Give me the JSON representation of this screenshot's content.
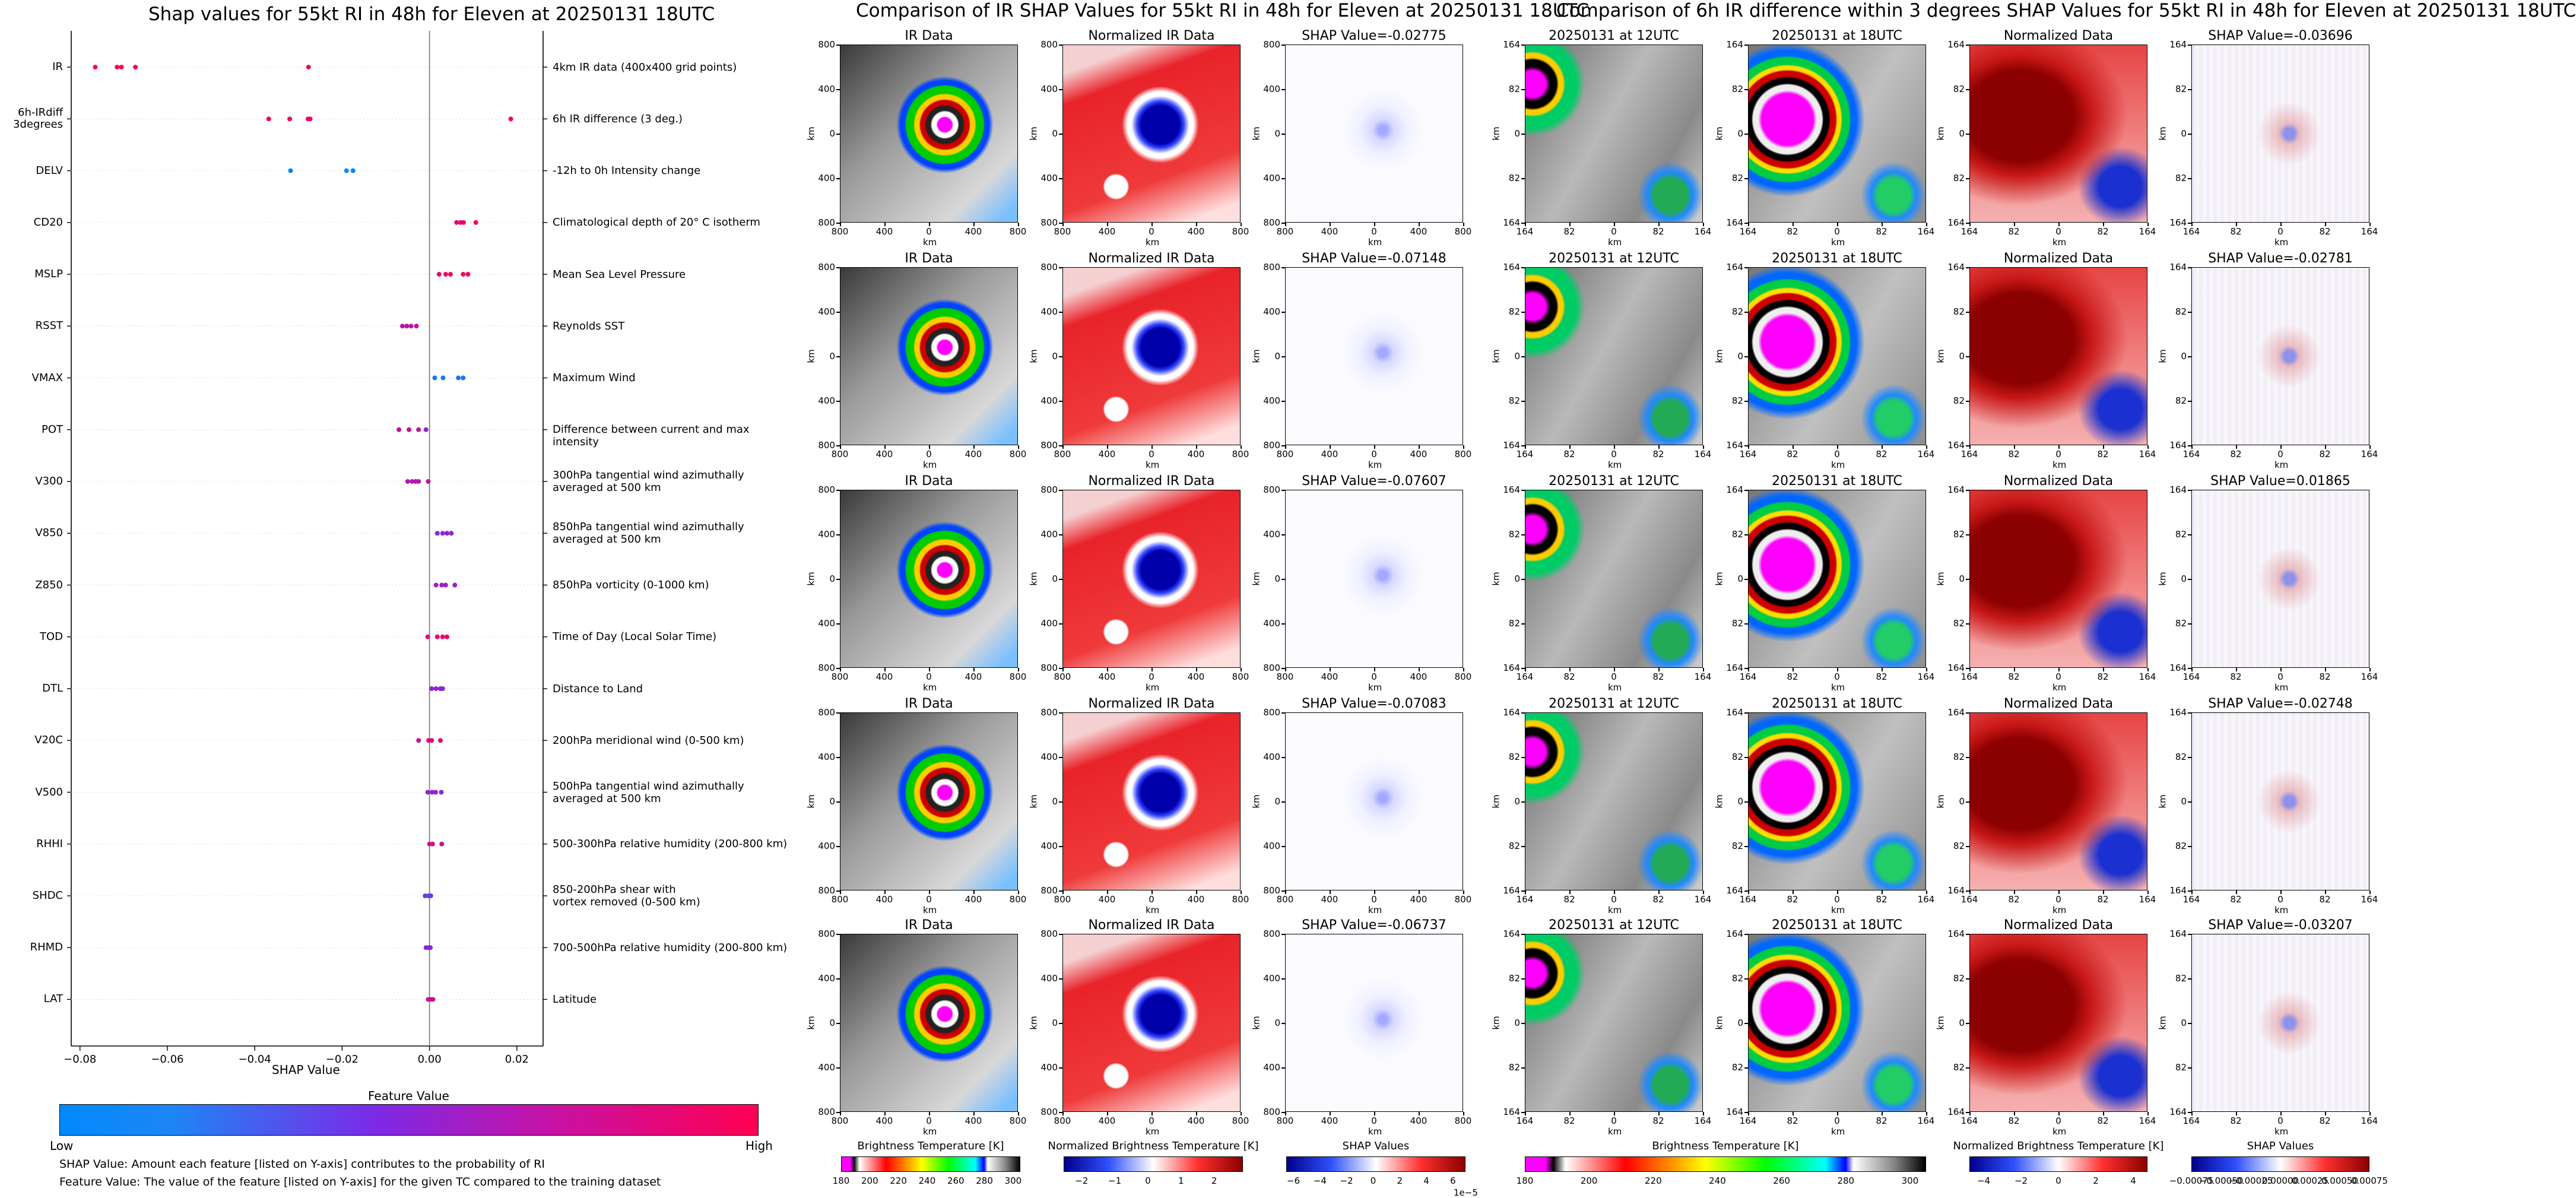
{
  "chart_data": [
    {
      "type": "scatter",
      "title": "Shap values for 55kt RI in 48h for Eleven at 20250131 18UTC",
      "xlabel": "SHAP Value",
      "xlim": [
        -0.082,
        0.026
      ],
      "xticks": [
        -0.08,
        -0.06,
        -0.04,
        -0.02,
        0.0,
        0.02
      ],
      "xtick_labels": [
        "−0.08",
        "−0.06",
        "−0.04",
        "−0.02",
        "0.00",
        "0.02"
      ],
      "zero_line": true,
      "features": [
        {
          "name": "IR",
          "desc": "4km IR data (400x400 grid points)",
          "points": [
            {
              "x": -0.0765,
              "v": 1.0
            },
            {
              "x": -0.0715,
              "v": 0.95
            },
            {
              "x": -0.0705,
              "v": 1.0
            },
            {
              "x": -0.0673,
              "v": 0.98
            },
            {
              "x": -0.0277,
              "v": 0.92
            }
          ]
        },
        {
          "name": "6h-IRdiff\n3degrees",
          "desc": "6h IR difference (3 deg.)",
          "points": [
            {
              "x": -0.0368,
              "v": 0.95
            },
            {
              "x": -0.032,
              "v": 0.97
            },
            {
              "x": -0.0278,
              "v": 0.9
            },
            {
              "x": -0.0273,
              "v": 0.93
            },
            {
              "x": 0.0186,
              "v": 1.0
            }
          ]
        },
        {
          "name": "DELV",
          "desc": "-12h to 0h Intensity change",
          "points": [
            {
              "x": -0.0318,
              "v": 0.05
            },
            {
              "x": -0.019,
              "v": 0.0
            },
            {
              "x": -0.0175,
              "v": 0.05
            }
          ]
        },
        {
          "name": "CD20",
          "desc": "Climatological depth of 20° C isotherm",
          "points": [
            {
              "x": 0.0062,
              "v": 0.9
            },
            {
              "x": 0.0071,
              "v": 0.95
            },
            {
              "x": 0.0078,
              "v": 0.9
            },
            {
              "x": 0.0106,
              "v": 1.0
            }
          ]
        },
        {
          "name": "MSLP",
          "desc": "Mean Sea Level Pressure",
          "points": [
            {
              "x": 0.0022,
              "v": 0.9
            },
            {
              "x": 0.0037,
              "v": 0.92
            },
            {
              "x": 0.0048,
              "v": 0.95
            },
            {
              "x": 0.0077,
              "v": 0.95
            },
            {
              "x": 0.0088,
              "v": 0.92
            }
          ]
        },
        {
          "name": "RSST",
          "desc": "Reynolds SST",
          "points": [
            {
              "x": -0.0062,
              "v": 0.7
            },
            {
              "x": -0.0052,
              "v": 0.72
            },
            {
              "x": -0.0042,
              "v": 0.75
            },
            {
              "x": -0.003,
              "v": 0.73
            }
          ]
        },
        {
          "name": "VMAX",
          "desc": "Maximum Wind",
          "points": [
            {
              "x": 0.0012,
              "v": 0.1
            },
            {
              "x": 0.0031,
              "v": 0.1
            },
            {
              "x": 0.0066,
              "v": 0.12
            },
            {
              "x": 0.0077,
              "v": 0.1
            }
          ]
        },
        {
          "name": "POT",
          "desc": "Difference between current and max intensity",
          "points": [
            {
              "x": -0.007,
              "v": 0.78
            },
            {
              "x": -0.0047,
              "v": 0.8
            },
            {
              "x": -0.0025,
              "v": 0.75
            },
            {
              "x": -0.0008,
              "v": 0.6
            }
          ]
        },
        {
          "name": "V300",
          "desc": "300hPa tangential wind azimuthally\naveraged at 500 km",
          "points": [
            {
              "x": -0.005,
              "v": 0.7
            },
            {
              "x": -0.004,
              "v": 0.72
            },
            {
              "x": -0.0032,
              "v": 0.7
            },
            {
              "x": -0.0025,
              "v": 0.7
            },
            {
              "x": -0.0003,
              "v": 0.75
            }
          ]
        },
        {
          "name": "V850",
          "desc": "850hPa tangential wind azimuthally\naveraged at 500 km",
          "points": [
            {
              "x": 0.0018,
              "v": 0.55
            },
            {
              "x": 0.003,
              "v": 0.55
            },
            {
              "x": 0.004,
              "v": 0.6
            },
            {
              "x": 0.005,
              "v": 0.55
            }
          ]
        },
        {
          "name": "Z850",
          "desc": "850hPa vorticity (0-1000 km)",
          "points": [
            {
              "x": 0.0015,
              "v": 0.65
            },
            {
              "x": 0.0028,
              "v": 0.65
            },
            {
              "x": 0.0037,
              "v": 0.62
            },
            {
              "x": 0.0058,
              "v": 0.6
            }
          ]
        },
        {
          "name": "TOD",
          "desc": "Time of Day (Local Solar Time)",
          "points": [
            {
              "x": -0.0004,
              "v": 0.85
            },
            {
              "x": 0.0018,
              "v": 0.9
            },
            {
              "x": 0.003,
              "v": 0.92
            },
            {
              "x": 0.004,
              "v": 0.9
            }
          ]
        },
        {
          "name": "DTL",
          "desc": "Distance to Land",
          "points": [
            {
              "x": 0.0005,
              "v": 0.55
            },
            {
              "x": 0.0015,
              "v": 0.55
            },
            {
              "x": 0.0025,
              "v": 0.58
            },
            {
              "x": 0.003,
              "v": 0.55
            }
          ]
        },
        {
          "name": "V20C",
          "desc": "200hPa meridional wind (0-500 km)",
          "points": [
            {
              "x": -0.0025,
              "v": 0.75
            },
            {
              "x": -0.0002,
              "v": 0.9
            },
            {
              "x": 0.0005,
              "v": 0.85
            },
            {
              "x": 0.0025,
              "v": 0.85
            }
          ]
        },
        {
          "name": "V500",
          "desc": "500hPa tangential wind azimuthally\naveraged at 500 km",
          "points": [
            {
              "x": -0.0004,
              "v": 0.6
            },
            {
              "x": 0.0006,
              "v": 0.55
            },
            {
              "x": 0.0014,
              "v": 0.6
            },
            {
              "x": 0.0027,
              "v": 0.55
            }
          ]
        },
        {
          "name": "RHHI",
          "desc": "500-300hPa relative humidity (200-800 km)",
          "points": [
            {
              "x": 0.0,
              "v": 0.8
            },
            {
              "x": 0.0007,
              "v": 0.85
            },
            {
              "x": 0.0028,
              "v": 0.8
            }
          ]
        },
        {
          "name": "SHDC",
          "desc": "850-200hPa shear with\nvortex removed (0-500 km)",
          "points": [
            {
              "x": -0.001,
              "v": 0.4
            },
            {
              "x": -0.0002,
              "v": 0.45
            },
            {
              "x": 0.0003,
              "v": 0.4
            }
          ]
        },
        {
          "name": "RHMD",
          "desc": "700-500hPa relative humidity (200-800 km)",
          "points": [
            {
              "x": -0.0008,
              "v": 0.55
            },
            {
              "x": -0.0003,
              "v": 0.58
            },
            {
              "x": 0.0002,
              "v": 0.55
            }
          ]
        },
        {
          "name": "LAT",
          "desc": "Latitude",
          "points": [
            {
              "x": -0.0003,
              "v": 0.75
            },
            {
              "x": 0.0003,
              "v": 0.8
            },
            {
              "x": 0.0008,
              "v": 0.78
            }
          ]
        }
      ],
      "colorbar": {
        "title": "Feature Value",
        "low": "Low",
        "high": "High",
        "low_color": "#008afb",
        "mid_color": "#7c2ae6",
        "high_color": "#ff0052"
      },
      "notes": [
        "SHAP Value: Amount each feature [listed on Y-axis] contributes to the probability of RI",
        "Feature Value: The value of the feature [listed on Y-axis] for the given TC compared to the training dataset"
      ]
    },
    {
      "type": "heatmap",
      "title": "Comparison of IR SHAP Values for 55kt RI in 48h for Eleven at 20250131 18UTC",
      "column_titles": [
        "IR Data",
        "Normalized IR Data"
      ],
      "shap_titles": [
        "SHAP Value=-0.02775",
        "SHAP Value=-0.07148",
        "SHAP Value=-0.07607",
        "SHAP Value=-0.07083",
        "SHAP Value=-0.06737"
      ],
      "axis_label": "km",
      "yticks": [
        "800",
        "400",
        "0",
        "400",
        "800"
      ],
      "xticks": [
        "800",
        "400",
        "0",
        "400",
        "800"
      ],
      "colorbars": [
        {
          "title": "Brightness Temperature [K]",
          "ticks": [
            "180",
            "200",
            "220",
            "240",
            "260",
            "280",
            "300"
          ]
        },
        {
          "title": "Normalized Brightness Temperature [K]",
          "ticks": [
            "−2",
            "−1",
            "0",
            "1",
            "2"
          ]
        },
        {
          "title": "SHAP Values",
          "ticks": [
            "−6",
            "−4",
            "−2",
            "0",
            "2",
            "4",
            "6"
          ],
          "offset": "1e−5"
        }
      ]
    },
    {
      "type": "heatmap",
      "title": "Comparison of 6h IR difference within 3 degrees SHAP Values for 55kt RI in 48h for Eleven at 20250131 18UTC",
      "column_titles": [
        "20250131 at 12UTC",
        "20250131 at 18UTC",
        "Normalized Data"
      ],
      "shap_titles": [
        "SHAP Value=-0.03696",
        "SHAP Value=-0.02781",
        "SHAP Value=0.01865",
        "SHAP Value=-0.02748",
        "SHAP Value=-0.03207"
      ],
      "axis_label": "km",
      "yticks": [
        "164",
        "82",
        "0",
        "82",
        "164"
      ],
      "xticks": [
        "164",
        "82",
        "0",
        "82",
        "164"
      ],
      "colorbars": [
        {
          "title": "Brightness Temperature [K]",
          "ticks": [
            "180",
            "200",
            "220",
            "240",
            "260",
            "280",
            "300"
          ]
        },
        {
          "title": "Normalized Brightness Temperature [K]",
          "ticks": [
            "−4",
            "−2",
            "0",
            "2",
            "4"
          ]
        },
        {
          "title": "SHAP Values",
          "ticks": [
            "−0.00075",
            "−0.00050",
            "−0.00025",
            "0.00000",
            "0.00025",
            "0.00050",
            "0.00075"
          ]
        }
      ]
    }
  ]
}
